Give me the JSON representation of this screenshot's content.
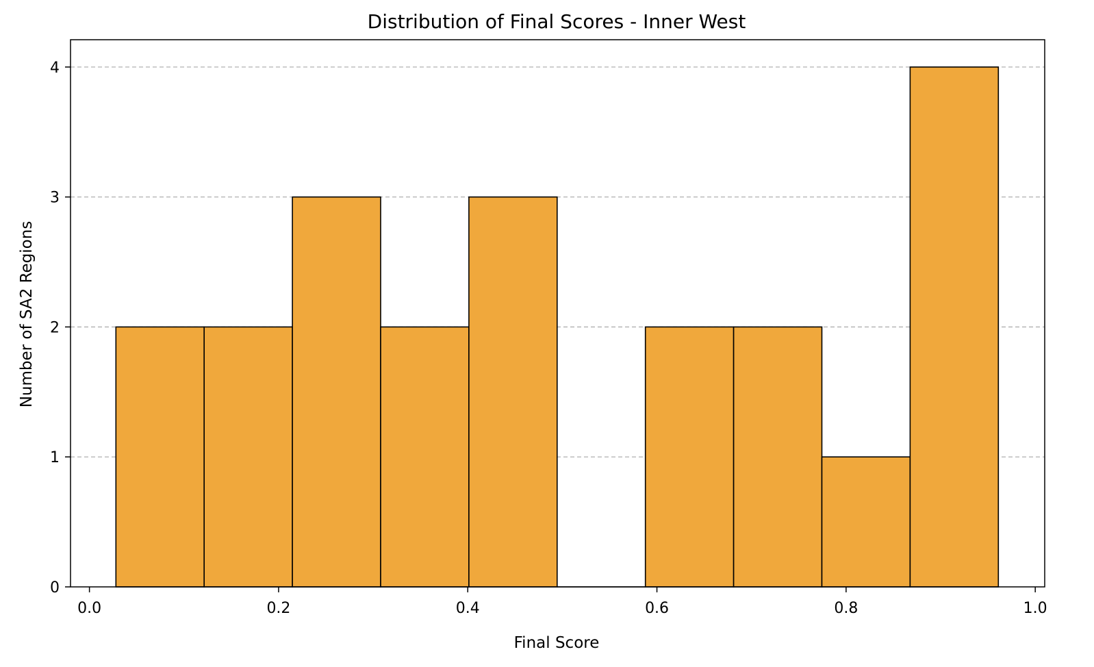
{
  "chart_data": {
    "type": "bar",
    "title": "Distribution of Final Scores - Inner West",
    "xlabel": "Final Score",
    "ylabel": "Number of SA2 Regions",
    "bin_edges": [
      0.028,
      0.1213,
      0.2146,
      0.3079,
      0.4012,
      0.4945,
      0.5878,
      0.6811,
      0.7744,
      0.8677,
      0.961
    ],
    "values": [
      2,
      2,
      3,
      2,
      3,
      0,
      2,
      2,
      1,
      4
    ],
    "xlim": [
      -0.02,
      1.01
    ],
    "ylim": [
      0,
      4.21
    ],
    "x_ticks": [
      0.0,
      0.2,
      0.4,
      0.6,
      0.8,
      1.0
    ],
    "x_tick_labels": [
      "0.0",
      "0.2",
      "0.4",
      "0.6",
      "0.8",
      "1.0"
    ],
    "y_ticks": [
      0,
      1,
      2,
      3,
      4
    ],
    "y_tick_labels": [
      "0",
      "1",
      "2",
      "3",
      "4"
    ],
    "grid": "y-dashed",
    "bar_color": "#f0a83c",
    "edge_color": "#000000",
    "grid_color": "#b0b0b0"
  }
}
